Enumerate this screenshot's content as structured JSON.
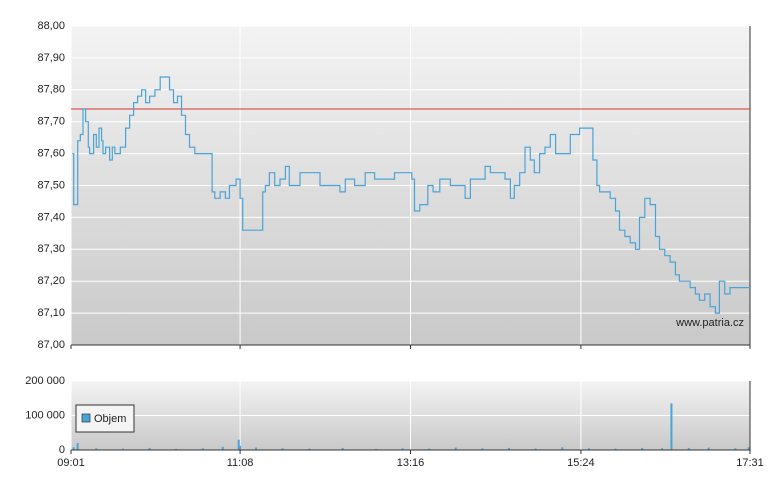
{
  "chart_data": [
    {
      "type": "line",
      "color": "#4aa3d8",
      "step": true,
      "x": [
        542,
        543,
        544,
        546,
        548,
        550,
        552,
        554,
        555,
        558,
        560,
        562,
        564,
        565,
        567,
        570,
        572,
        574,
        578,
        580,
        582,
        585,
        588,
        591,
        594,
        597,
        600,
        604,
        608,
        612,
        615,
        618,
        621,
        624,
        627,
        630,
        634,
        642,
        645,
        647,
        649,
        653,
        657,
        660,
        665,
        668,
        670,
        675,
        684,
        685,
        687,
        690,
        694,
        698,
        702,
        705,
        713,
        721,
        728,
        736,
        743,
        747,
        754,
        762,
        769,
        777,
        784,
        792,
        797,
        799,
        803,
        809,
        813,
        818,
        826,
        833,
        837,
        841,
        848,
        852,
        856,
        863,
        867,
        871,
        874,
        878,
        882,
        886,
        889,
        893,
        897,
        901,
        905,
        912,
        916,
        923,
        931,
        933,
        936,
        938,
        942,
        946,
        950,
        953,
        957,
        961,
        965,
        968,
        972,
        976,
        980,
        983,
        987,
        991,
        995,
        998,
        1002,
        1006,
        1010,
        1013,
        1017,
        1021,
        1025,
        1028,
        1032,
        1036,
        1043,
        1051
      ],
      "values": [
        87.6,
        87.44,
        87.44,
        87.64,
        87.66,
        87.74,
        87.7,
        87.62,
        87.6,
        87.66,
        87.62,
        87.68,
        87.64,
        87.6,
        87.62,
        87.58,
        87.62,
        87.6,
        87.62,
        87.62,
        87.68,
        87.72,
        87.76,
        87.78,
        87.8,
        87.76,
        87.78,
        87.8,
        87.84,
        87.84,
        87.8,
        87.76,
        87.78,
        87.72,
        87.66,
        87.62,
        87.6,
        87.6,
        87.6,
        87.48,
        87.46,
        87.48,
        87.46,
        87.5,
        87.52,
        87.46,
        87.36,
        87.36,
        87.36,
        87.48,
        87.5,
        87.54,
        87.5,
        87.52,
        87.56,
        87.5,
        87.54,
        87.54,
        87.5,
        87.5,
        87.48,
        87.52,
        87.5,
        87.54,
        87.52,
        87.52,
        87.54,
        87.54,
        87.52,
        87.42,
        87.44,
        87.5,
        87.48,
        87.52,
        87.5,
        87.5,
        87.46,
        87.52,
        87.52,
        87.56,
        87.54,
        87.54,
        87.52,
        87.46,
        87.5,
        87.54,
        87.62,
        87.58,
        87.54,
        87.6,
        87.62,
        87.66,
        87.6,
        87.6,
        87.66,
        87.68,
        87.68,
        87.58,
        87.5,
        87.48,
        87.48,
        87.46,
        87.42,
        87.36,
        87.34,
        87.32,
        87.3,
        87.4,
        87.46,
        87.44,
        87.34,
        87.3,
        87.28,
        87.26,
        87.22,
        87.2,
        87.2,
        87.18,
        87.16,
        87.14,
        87.16,
        87.12,
        87.1,
        87.2,
        87.16,
        87.18,
        87.18,
        87.18
      ],
      "xlim": [
        541,
        1051
      ],
      "ylim": [
        87.0,
        88.0
      ],
      "yticks": [
        {
          "value": 87.0,
          "label": "87,00"
        },
        {
          "value": 87.1,
          "label": "87,10"
        },
        {
          "value": 87.2,
          "label": "87,20"
        },
        {
          "value": 87.3,
          "label": "87,30"
        },
        {
          "value": 87.4,
          "label": "87,40"
        },
        {
          "value": 87.5,
          "label": "87,50"
        },
        {
          "value": 87.6,
          "label": "87,60"
        },
        {
          "value": 87.7,
          "label": "87,70"
        },
        {
          "value": 87.8,
          "label": "87,80"
        },
        {
          "value": 87.9,
          "label": "87,90"
        },
        {
          "value": 88.0,
          "label": "88,00"
        }
      ],
      "reference_line": {
        "value": 87.74,
        "color": "#d9342b"
      },
      "annotation": "www.patria.cz",
      "grid": true
    },
    {
      "type": "bar",
      "color": "#4aa3d8",
      "series": [
        {
          "name": "Objem",
          "color": "#4aa3d8",
          "x": [
            543,
            546,
            560,
            580,
            600,
            620,
            640,
            655,
            667,
            668,
            680,
            700,
            720,
            745,
            770,
            790,
            810,
            830,
            850,
            870,
            890,
            910,
            930,
            950,
            970,
            985,
            992,
            1005,
            1020,
            1040,
            1050
          ],
          "values": [
            8000,
            20000,
            5000,
            4000,
            6000,
            3000,
            5000,
            9000,
            30000,
            12000,
            7000,
            5000,
            4000,
            6000,
            3000,
            5000,
            4000,
            7000,
            5000,
            6000,
            4000,
            8000,
            5000,
            4000,
            6000,
            5000,
            135000,
            6000,
            7000,
            5000,
            8000
          ]
        }
      ],
      "xlim": [
        541,
        1051
      ],
      "ylim": [
        0,
        200000
      ],
      "yticks": [
        0,
        {
          "value": 100000,
          "label": "100 000"
        },
        {
          "value": 200000,
          "label": "200 000"
        }
      ],
      "xticks": [
        {
          "value": 541,
          "label": "09:01"
        },
        {
          "value": 668,
          "label": "11:08"
        },
        {
          "value": 796,
          "label": "13:16"
        },
        {
          "value": 924,
          "label": "15:24"
        },
        {
          "value": 1051,
          "label": "17:31"
        }
      ],
      "grid": true
    }
  ]
}
